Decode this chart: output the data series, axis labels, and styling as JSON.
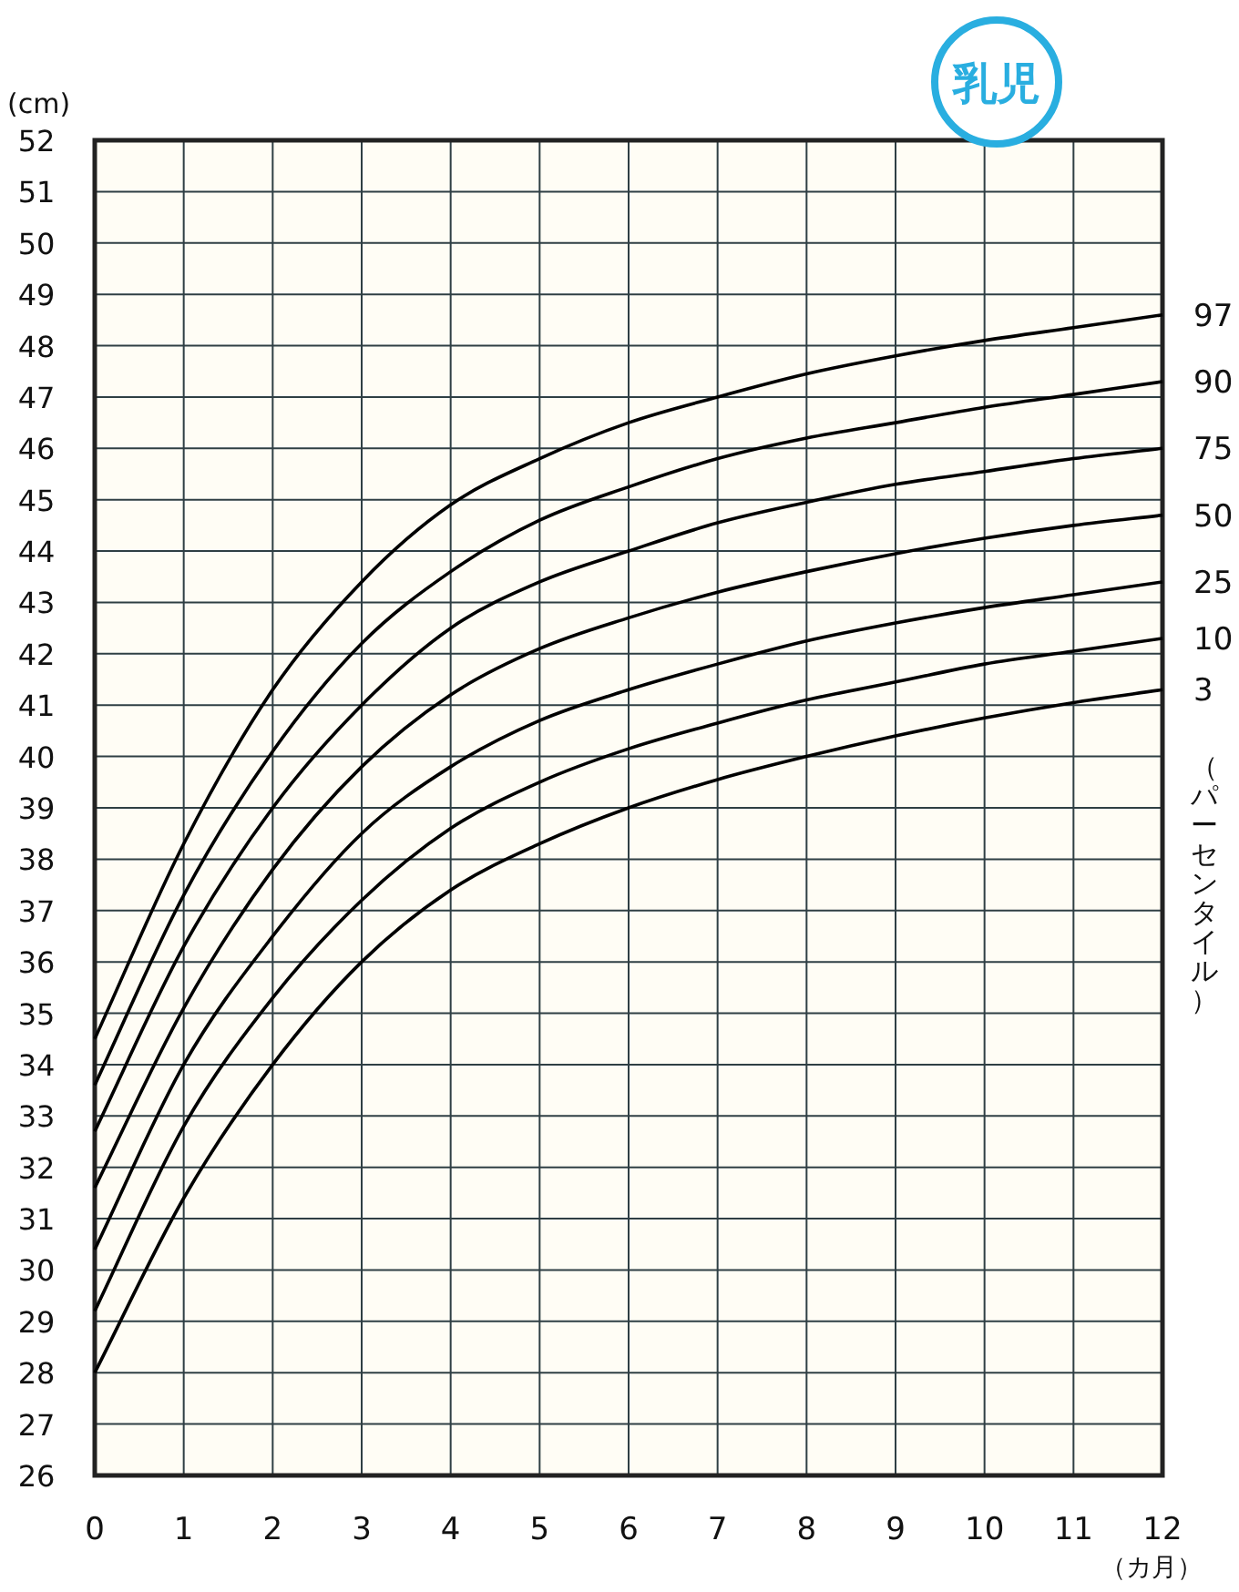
{
  "chart_data": {
    "type": "line",
    "title": "乳児",
    "ylabel": "(cm)",
    "xlabel": "（カ月）",
    "y2label": "（パーセンタイル）",
    "x": [
      0,
      1,
      2,
      3,
      4,
      5,
      6,
      7,
      8,
      9,
      10,
      11,
      12
    ],
    "xlim": [
      0,
      12
    ],
    "xticks": [
      0,
      1,
      2,
      3,
      4,
      5,
      6,
      7,
      8,
      9,
      10,
      11,
      12
    ],
    "ylim": [
      26,
      52
    ],
    "yticks": [
      26,
      27,
      28,
      29,
      30,
      31,
      32,
      33,
      34,
      35,
      36,
      37,
      38,
      39,
      40,
      41,
      42,
      43,
      44,
      45,
      46,
      47,
      48,
      49,
      50,
      51,
      52
    ],
    "grid": true,
    "marker": "none",
    "line_style": "solid",
    "series": [
      {
        "name": "97",
        "color": "#000000",
        "values": [
          34.5,
          38.3,
          41.3,
          43.4,
          44.9,
          45.8,
          46.5,
          47.0,
          47.45,
          47.8,
          48.1,
          48.35,
          48.6
        ]
      },
      {
        "name": "90",
        "color": "#000000",
        "values": [
          33.6,
          37.3,
          40.1,
          42.2,
          43.6,
          44.6,
          45.25,
          45.8,
          46.2,
          46.5,
          46.8,
          47.05,
          47.3
        ]
      },
      {
        "name": "75",
        "color": "#000000",
        "values": [
          32.7,
          36.3,
          39.0,
          41.0,
          42.5,
          43.4,
          44.0,
          44.55,
          44.95,
          45.3,
          45.55,
          45.8,
          46.0
        ]
      },
      {
        "name": "50",
        "color": "#000000",
        "values": [
          31.6,
          35.1,
          37.8,
          39.8,
          41.2,
          42.1,
          42.7,
          43.2,
          43.6,
          43.95,
          44.25,
          44.5,
          44.7
        ]
      },
      {
        "name": "25",
        "color": "#000000",
        "values": [
          30.4,
          34.0,
          36.5,
          38.5,
          39.8,
          40.7,
          41.3,
          41.8,
          42.25,
          42.6,
          42.9,
          43.15,
          43.4
        ]
      },
      {
        "name": "10",
        "color": "#000000",
        "values": [
          29.2,
          32.8,
          35.3,
          37.2,
          38.6,
          39.5,
          40.15,
          40.65,
          41.1,
          41.45,
          41.8,
          42.05,
          42.3
        ]
      },
      {
        "name": "3",
        "color": "#000000",
        "values": [
          28.0,
          31.4,
          34.0,
          36.0,
          37.4,
          38.3,
          39.0,
          39.55,
          40.0,
          40.4,
          40.75,
          41.05,
          41.3
        ]
      }
    ]
  }
}
